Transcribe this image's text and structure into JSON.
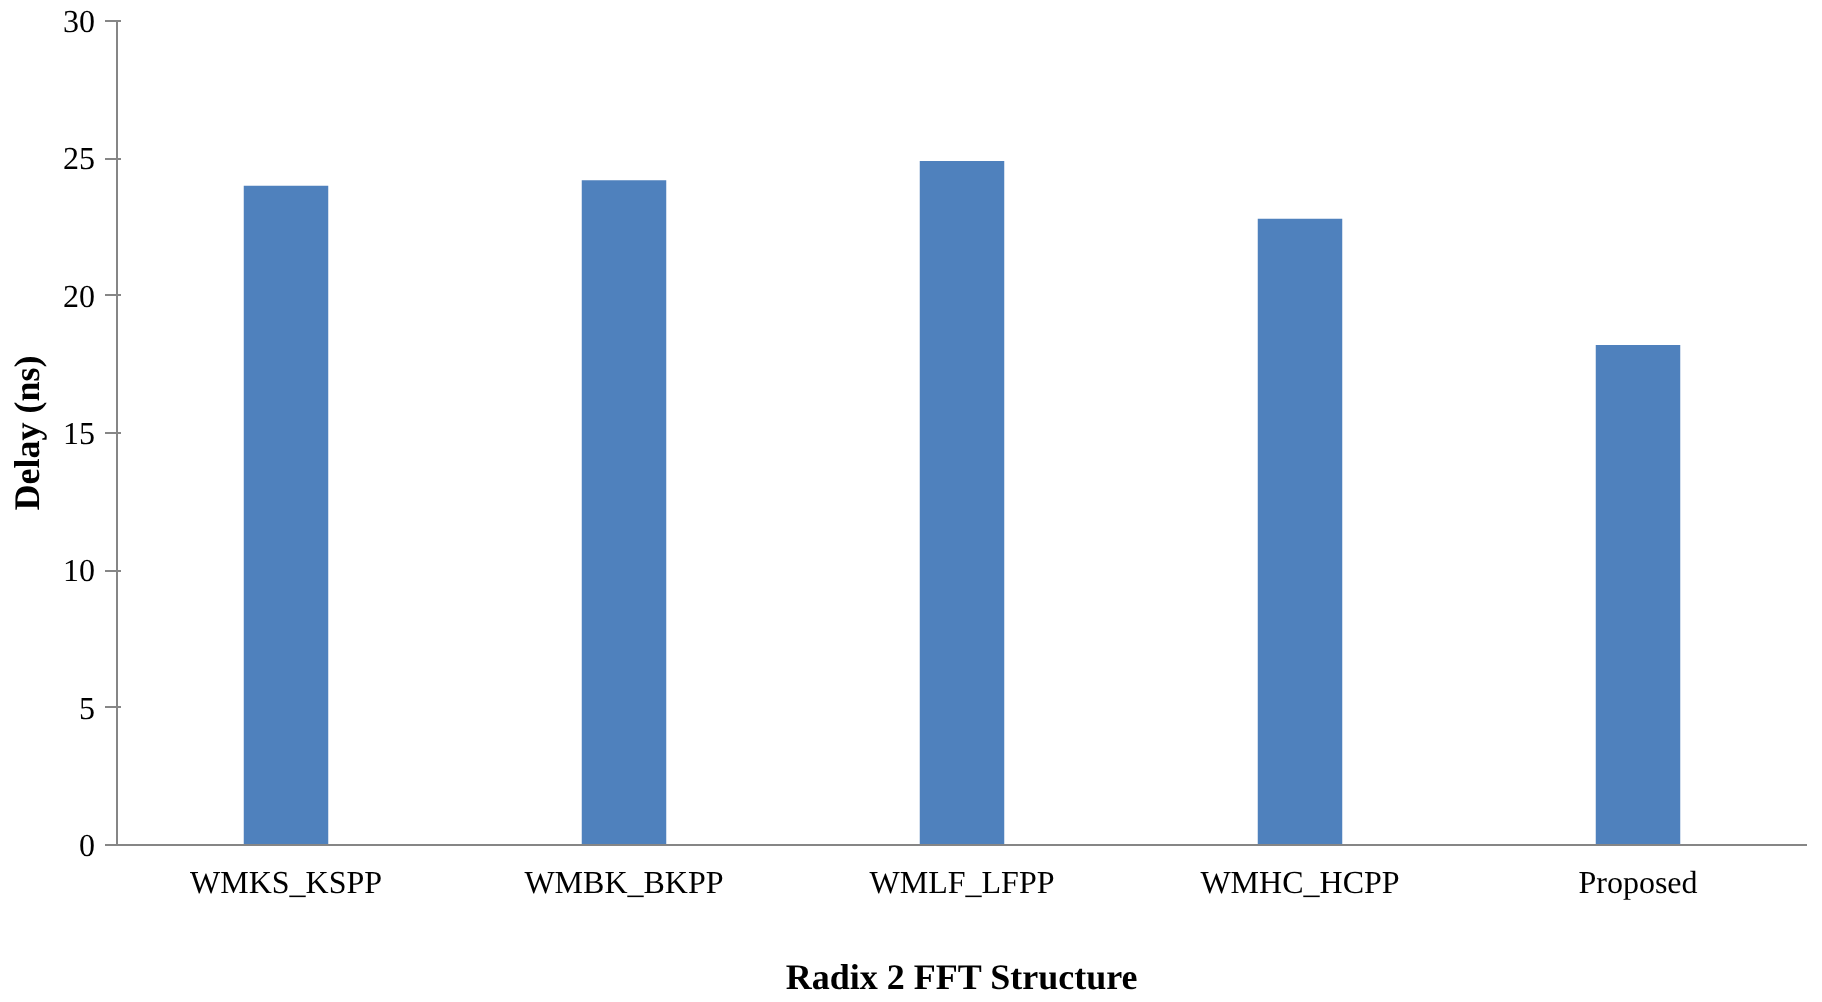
{
  "chart_data": {
    "type": "bar",
    "xlabel": "Radix 2 FFT Structure",
    "ylabel": "Delay (ns)",
    "categories": [
      "WMKS_KSPP",
      "WMBK_BKPP",
      "WMLF_LFPP",
      "WMHC_HCPP",
      "Proposed"
    ],
    "values": [
      24.0,
      24.2,
      24.9,
      22.8,
      18.2
    ],
    "color": "#4f81bd",
    "ylim": [
      0,
      30
    ],
    "yticks": [
      0,
      5,
      10,
      15,
      20,
      25,
      30
    ],
    "grid": false
  }
}
